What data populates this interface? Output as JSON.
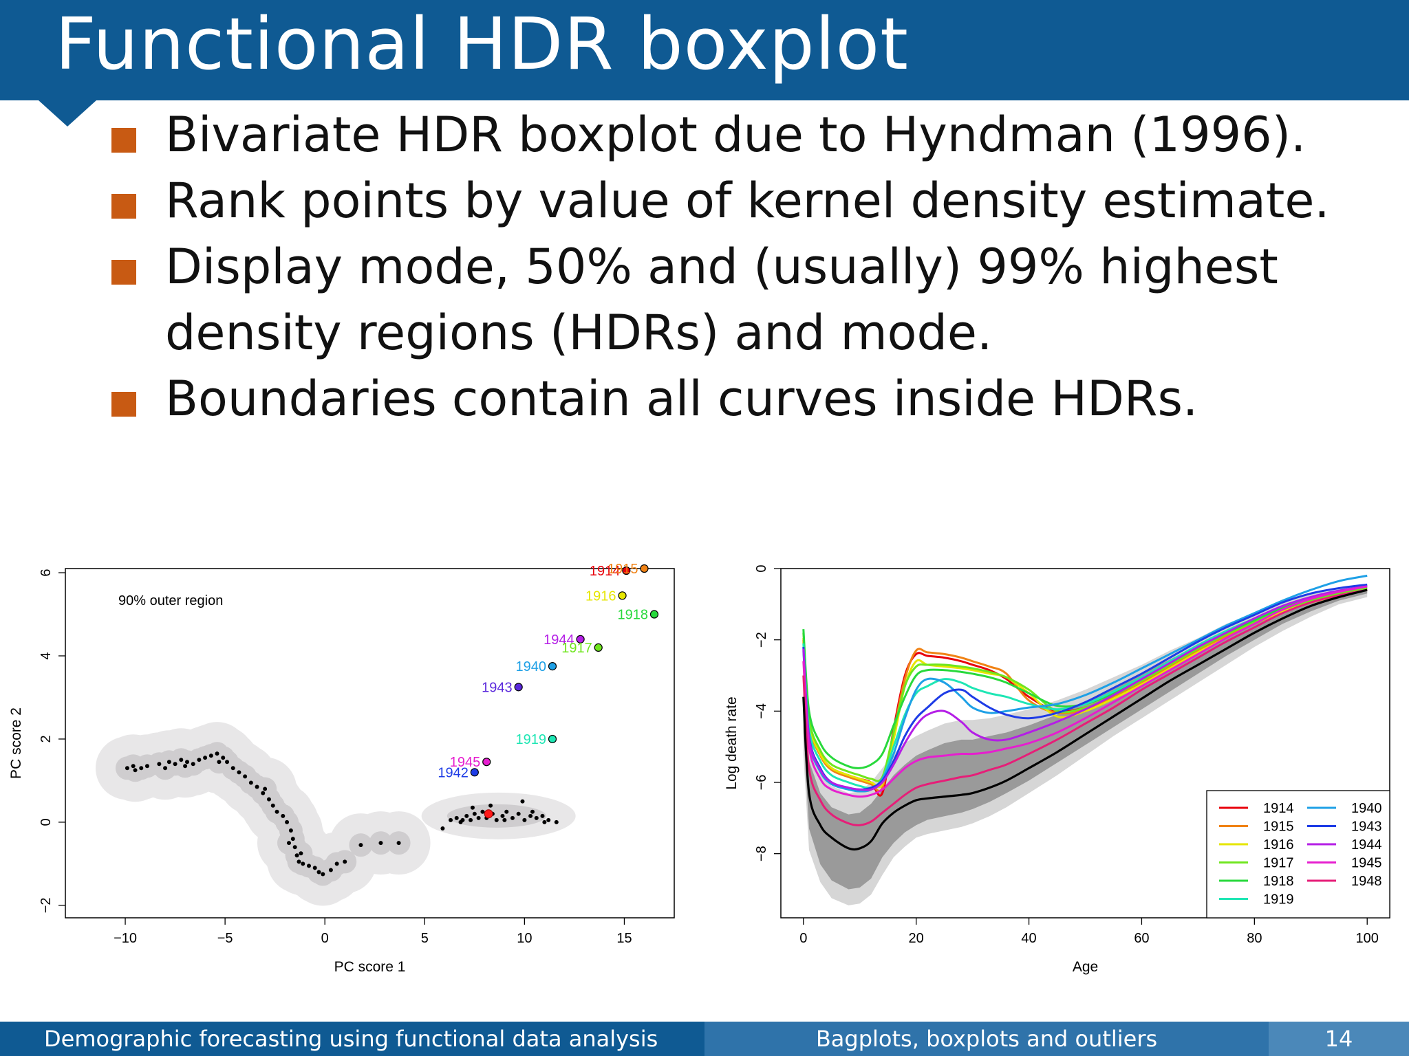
{
  "slide": {
    "title": "Functional HDR boxplot",
    "bullets": [
      "Bivariate HDR boxplot due to Hyndman (1996).",
      "Rank points by value of kernel density estimate.",
      "Display mode, 50% and (usually) 99% highest",
      "density regions (HDRs) and mode.",
      "Boundaries contain all curves inside HDRs."
    ],
    "footer": {
      "left": "Demographic forecasting using functional data analysis",
      "center": "Bagplots, boxplots and outliers",
      "page": "14"
    }
  },
  "colors": {
    "header": "#0f5a93",
    "bullet": "#c85a13"
  },
  "chart_data": [
    {
      "type": "scatter",
      "annotation": "90% outer region",
      "xlabel": "PC score 1",
      "ylabel": "PC score 2",
      "xlim": [
        -13,
        17.5
      ],
      "ylim": [
        -2.3,
        6.1
      ],
      "xticks": [
        "−10",
        "−5",
        "0",
        "5",
        "10",
        "15"
      ],
      "xtick_values": [
        -10,
        -5,
        0,
        5,
        10,
        15
      ],
      "yticks": [
        "−2",
        "0",
        "2",
        "4",
        "6"
      ],
      "ytick_values": [
        -2,
        0,
        2,
        4,
        6
      ],
      "points": [
        [
          -9.9,
          1.3
        ],
        [
          -9.6,
          1.35
        ],
        [
          -9.2,
          1.3
        ],
        [
          -8.9,
          1.35
        ],
        [
          -8.3,
          1.4
        ],
        [
          -8.0,
          1.3
        ],
        [
          -7.8,
          1.45
        ],
        [
          -7.5,
          1.4
        ],
        [
          -7.2,
          1.5
        ],
        [
          -6.9,
          1.45
        ],
        [
          -6.6,
          1.4
        ],
        [
          -6.3,
          1.5
        ],
        [
          -6.0,
          1.55
        ],
        [
          -5.7,
          1.6
        ],
        [
          -5.4,
          1.65
        ],
        [
          -5.1,
          1.55
        ],
        [
          -4.9,
          1.45
        ],
        [
          -4.6,
          1.3
        ],
        [
          -4.3,
          1.2
        ],
        [
          -4.0,
          1.1
        ],
        [
          -3.7,
          0.95
        ],
        [
          -3.4,
          0.85
        ],
        [
          -3.1,
          0.7
        ],
        [
          -2.8,
          0.55
        ],
        [
          -2.6,
          0.4
        ],
        [
          -2.4,
          0.25
        ],
        [
          -2.1,
          0.15
        ],
        [
          -1.9,
          0.0
        ],
        [
          -1.7,
          -0.2
        ],
        [
          -1.6,
          -0.4
        ],
        [
          -1.5,
          -0.6
        ],
        [
          -1.4,
          -0.8
        ],
        [
          -1.3,
          -0.95
        ],
        [
          -1.1,
          -1.0
        ],
        [
          -0.8,
          -1.05
        ],
        [
          -0.5,
          -1.1
        ],
        [
          -0.3,
          -1.2
        ],
        [
          -0.1,
          -1.25
        ],
        [
          0.3,
          -1.15
        ],
        [
          0.6,
          -1.0
        ],
        [
          1.0,
          -0.95
        ],
        [
          1.8,
          -0.55
        ],
        [
          2.8,
          -0.5
        ],
        [
          3.7,
          -0.5
        ],
        [
          -9.5,
          1.25
        ],
        [
          -7.0,
          1.35
        ],
        [
          -5.3,
          1.45
        ],
        [
          -3.0,
          0.8
        ],
        [
          -1.8,
          -0.5
        ],
        [
          -1.2,
          -0.75
        ],
        [
          5.9,
          -0.15
        ],
        [
          6.3,
          0.05
        ],
        [
          6.6,
          0.1
        ],
        [
          6.9,
          0.05
        ],
        [
          7.1,
          0.15
        ],
        [
          7.3,
          0.05
        ],
        [
          7.5,
          0.2
        ],
        [
          7.7,
          0.1
        ],
        [
          7.9,
          0.25
        ],
        [
          8.1,
          0.1
        ],
        [
          8.4,
          0.2
        ],
        [
          8.6,
          0.05
        ],
        [
          8.9,
          0.15
        ],
        [
          9.1,
          0.25
        ],
        [
          9.4,
          0.1
        ],
        [
          9.7,
          0.2
        ],
        [
          10.0,
          0.05
        ],
        [
          10.3,
          0.15
        ],
        [
          10.6,
          0.1
        ],
        [
          10.9,
          0.15
        ],
        [
          11.2,
          0.05
        ],
        [
          7.4,
          0.35
        ],
        [
          8.3,
          0.4
        ],
        [
          6.8,
          0.0
        ],
        [
          9.0,
          0.05
        ],
        [
          9.9,
          0.5
        ],
        [
          10.4,
          0.25
        ],
        [
          11.0,
          0.0
        ],
        [
          11.6,
          0.0
        ]
      ],
      "mode": [
        8.2,
        0.2
      ],
      "outliers": [
        {
          "label": "1914",
          "x": 15.1,
          "y": 6.05,
          "color": "#e8000b"
        },
        {
          "label": "1915",
          "x": 16.0,
          "y": 6.1,
          "color": "#f08214"
        },
        {
          "label": "1916",
          "x": 14.9,
          "y": 5.45,
          "color": "#e6e600"
        },
        {
          "label": "1918",
          "x": 16.5,
          "y": 5.0,
          "color": "#28d93c"
        },
        {
          "label": "1944",
          "x": 12.8,
          "y": 4.4,
          "color": "#b41ee6"
        },
        {
          "label": "1917",
          "x": 13.7,
          "y": 4.2,
          "color": "#6fe61e"
        },
        {
          "label": "1940",
          "x": 11.4,
          "y": 3.75,
          "color": "#1ea0e6"
        },
        {
          "label": "1943",
          "x": 9.7,
          "y": 3.25,
          "color": "#5a28dc"
        },
        {
          "label": "1919",
          "x": 11.4,
          "y": 2.0,
          "color": "#1ee6b4"
        },
        {
          "label": "1945",
          "x": 8.1,
          "y": 1.45,
          "color": "#e61ecf"
        },
        {
          "label": "1942",
          "x": 7.5,
          "y": 1.2,
          "color": "#1e3ce6"
        }
      ]
    },
    {
      "type": "line",
      "xlabel": "Age",
      "ylabel": "Log death rate",
      "xlim": [
        -4,
        104
      ],
      "ylim": [
        -9.8,
        0
      ],
      "xticks": [
        "0",
        "20",
        "40",
        "60",
        "80",
        "100"
      ],
      "xtick_values": [
        0,
        20,
        40,
        60,
        80,
        100
      ],
      "yticks": [
        "0",
        "−2",
        "−4",
        "−6",
        "−8"
      ],
      "ytick_values": [
        0,
        -2,
        -4,
        -6,
        -8
      ],
      "ages": [
        0,
        1,
        3,
        5,
        8,
        10,
        12,
        14,
        16,
        18,
        20,
        22,
        25,
        28,
        30,
        33,
        36,
        40,
        45,
        50,
        55,
        60,
        65,
        70,
        75,
        80,
        85,
        90,
        95,
        100
      ],
      "median": [
        -3.6,
        -6.3,
        -7.2,
        -7.55,
        -7.85,
        -7.85,
        -7.65,
        -7.15,
        -6.85,
        -6.65,
        -6.5,
        -6.45,
        -6.4,
        -6.35,
        -6.3,
        -6.15,
        -5.95,
        -5.6,
        -5.15,
        -4.65,
        -4.15,
        -3.65,
        -3.15,
        -2.7,
        -2.25,
        -1.8,
        -1.4,
        -1.05,
        -0.8,
        -0.6
      ],
      "inner_region": {
        "upper": [
          -2.9,
          -5.4,
          -6.3,
          -6.7,
          -6.9,
          -6.85,
          -6.6,
          -6.2,
          -5.8,
          -5.5,
          -5.25,
          -5.1,
          -4.9,
          -4.8,
          -4.8,
          -4.7,
          -4.6,
          -4.4,
          -4.1,
          -3.75,
          -3.35,
          -2.95,
          -2.55,
          -2.15,
          -1.75,
          -1.4,
          -1.05,
          -0.8,
          -0.65,
          -0.5
        ],
        "lower": [
          -4.6,
          -7.3,
          -8.3,
          -8.75,
          -9.0,
          -8.95,
          -8.7,
          -8.1,
          -7.7,
          -7.4,
          -7.2,
          -7.05,
          -6.95,
          -6.85,
          -6.75,
          -6.55,
          -6.3,
          -5.95,
          -5.45,
          -4.95,
          -4.45,
          -3.95,
          -3.45,
          -2.95,
          -2.45,
          -2.0,
          -1.55,
          -1.2,
          -0.9,
          -0.7
        ]
      },
      "outer_region": {
        "upper": [
          -2.2,
          -4.8,
          -5.7,
          -6.1,
          -6.3,
          -6.25,
          -6.0,
          -5.6,
          -5.2,
          -4.9,
          -4.7,
          -4.55,
          -4.35,
          -4.25,
          -4.25,
          -4.2,
          -4.1,
          -3.95,
          -3.7,
          -3.4,
          -3.05,
          -2.7,
          -2.3,
          -1.95,
          -1.55,
          -1.25,
          -0.95,
          -0.72,
          -0.58,
          -0.45
        ],
        "lower": [
          -5.2,
          -7.9,
          -8.8,
          -9.25,
          -9.45,
          -9.4,
          -9.15,
          -8.6,
          -8.1,
          -7.8,
          -7.55,
          -7.45,
          -7.35,
          -7.25,
          -7.15,
          -6.95,
          -6.7,
          -6.3,
          -5.8,
          -5.25,
          -4.7,
          -4.2,
          -3.7,
          -3.2,
          -2.7,
          -2.2,
          -1.75,
          -1.35,
          -1.0,
          -0.8
        ]
      },
      "legend": [
        "1914",
        "1915",
        "1916",
        "1917",
        "1918",
        "1919",
        "1940",
        "1943",
        "1944",
        "1945",
        "1948"
      ],
      "legend_position": "bottom-right",
      "series": [
        {
          "name": "1914",
          "color": "#e8000b",
          "values": [
            -2.0,
            -4.3,
            -5.2,
            -5.6,
            -5.8,
            -5.9,
            -6.0,
            -6.3,
            -4.5,
            -3.0,
            -2.4,
            -2.45,
            -2.5,
            -2.6,
            -2.7,
            -2.85,
            -3.1,
            -3.6,
            -4.0,
            -3.9,
            -3.6,
            -3.2,
            -2.75,
            -2.3,
            -1.9,
            -1.55,
            -1.2,
            -0.95,
            -0.75,
            -0.6
          ]
        },
        {
          "name": "1915",
          "color": "#f08214",
          "values": [
            -2.05,
            -4.35,
            -5.25,
            -5.65,
            -5.85,
            -5.95,
            -6.05,
            -6.15,
            -4.6,
            -3.1,
            -2.3,
            -2.35,
            -2.4,
            -2.5,
            -2.6,
            -2.75,
            -2.95,
            -3.7,
            -4.05,
            -3.95,
            -3.6,
            -3.2,
            -2.75,
            -2.3,
            -1.9,
            -1.55,
            -1.2,
            -0.95,
            -0.75,
            -0.6
          ]
        },
        {
          "name": "1916",
          "color": "#e6e600",
          "values": [
            -1.95,
            -4.3,
            -5.2,
            -5.6,
            -5.8,
            -5.9,
            -6.0,
            -6.05,
            -4.8,
            -3.3,
            -2.6,
            -2.7,
            -2.75,
            -2.8,
            -2.85,
            -2.95,
            -3.05,
            -3.5,
            -4.15,
            -4.0,
            -3.65,
            -3.25,
            -2.8,
            -2.35,
            -1.95,
            -1.55,
            -1.2,
            -0.95,
            -0.75,
            -0.6
          ]
        },
        {
          "name": "1917",
          "color": "#6fe61e",
          "values": [
            -1.8,
            -4.2,
            -5.1,
            -5.5,
            -5.7,
            -5.8,
            -5.9,
            -5.85,
            -4.6,
            -3.3,
            -2.75,
            -2.7,
            -2.7,
            -2.75,
            -2.8,
            -2.9,
            -3.05,
            -3.4,
            -4.0,
            -3.9,
            -3.55,
            -3.15,
            -2.7,
            -2.25,
            -1.85,
            -1.5,
            -1.15,
            -0.9,
            -0.7,
            -0.55
          ]
        },
        {
          "name": "1918",
          "color": "#28d93c",
          "values": [
            -1.7,
            -4.0,
            -4.9,
            -5.3,
            -5.55,
            -5.6,
            -5.5,
            -5.2,
            -4.4,
            -3.6,
            -3.0,
            -2.85,
            -2.85,
            -2.9,
            -2.95,
            -3.05,
            -3.2,
            -3.5,
            -3.85,
            -3.8,
            -3.5,
            -3.1,
            -2.65,
            -2.2,
            -1.8,
            -1.45,
            -1.1,
            -0.85,
            -0.65,
            -0.5
          ]
        },
        {
          "name": "1919",
          "color": "#1ee6b4",
          "values": [
            -2.1,
            -4.5,
            -5.4,
            -5.8,
            -6.0,
            -6.1,
            -6.15,
            -5.9,
            -5.0,
            -4.1,
            -3.5,
            -3.3,
            -3.1,
            -3.2,
            -3.35,
            -3.5,
            -3.6,
            -3.8,
            -3.95,
            -3.8,
            -3.45,
            -3.05,
            -2.6,
            -2.15,
            -1.75,
            -1.4,
            -1.05,
            -0.8,
            -0.62,
            -0.5
          ]
        },
        {
          "name": "1940",
          "color": "#1ea0e6",
          "values": [
            -2.3,
            -4.8,
            -5.7,
            -6.05,
            -6.2,
            -6.25,
            -6.2,
            -5.9,
            -5.2,
            -4.2,
            -3.4,
            -3.1,
            -3.2,
            -3.6,
            -3.9,
            -4.05,
            -4.0,
            -3.9,
            -3.8,
            -3.55,
            -3.2,
            -2.8,
            -2.4,
            -2.0,
            -1.6,
            -1.25,
            -0.9,
            -0.6,
            -0.35,
            -0.2
          ]
        },
        {
          "name": "1943",
          "color": "#1e3ce6",
          "values": [
            -2.2,
            -4.7,
            -5.6,
            -6.0,
            -6.15,
            -6.2,
            -6.15,
            -5.95,
            -5.4,
            -4.7,
            -4.2,
            -3.9,
            -3.5,
            -3.4,
            -3.6,
            -3.9,
            -4.1,
            -4.2,
            -4.05,
            -3.75,
            -3.35,
            -2.95,
            -2.5,
            -2.05,
            -1.65,
            -1.3,
            -0.95,
            -0.7,
            -0.55,
            -0.45
          ]
        },
        {
          "name": "1944",
          "color": "#b41ee6",
          "values": [
            -2.25,
            -4.75,
            -5.65,
            -6.0,
            -6.15,
            -6.2,
            -6.2,
            -6.0,
            -5.5,
            -4.9,
            -4.4,
            -4.1,
            -4.0,
            -4.3,
            -4.6,
            -4.8,
            -4.8,
            -4.6,
            -4.3,
            -3.95,
            -3.55,
            -3.1,
            -2.65,
            -2.2,
            -1.8,
            -1.4,
            -1.05,
            -0.8,
            -0.62,
            -0.5
          ]
        },
        {
          "name": "1945",
          "color": "#e61ecf",
          "values": [
            -2.6,
            -5.0,
            -5.9,
            -6.2,
            -6.35,
            -6.4,
            -6.35,
            -6.2,
            -5.9,
            -5.6,
            -5.4,
            -5.3,
            -5.25,
            -5.2,
            -5.2,
            -5.15,
            -5.05,
            -4.9,
            -4.6,
            -4.2,
            -3.75,
            -3.3,
            -2.85,
            -2.4,
            -1.95,
            -1.55,
            -1.15,
            -0.85,
            -0.65,
            -0.5
          ]
        },
        {
          "name": "1948",
          "color": "#e61e78",
          "values": [
            -3.0,
            -5.6,
            -6.5,
            -6.9,
            -7.15,
            -7.2,
            -7.1,
            -6.85,
            -6.6,
            -6.35,
            -6.15,
            -6.05,
            -5.95,
            -5.85,
            -5.8,
            -5.65,
            -5.5,
            -5.2,
            -4.8,
            -4.35,
            -3.9,
            -3.4,
            -2.95,
            -2.5,
            -2.05,
            -1.65,
            -1.25,
            -0.95,
            -0.75,
            -0.6
          ]
        }
      ]
    }
  ]
}
